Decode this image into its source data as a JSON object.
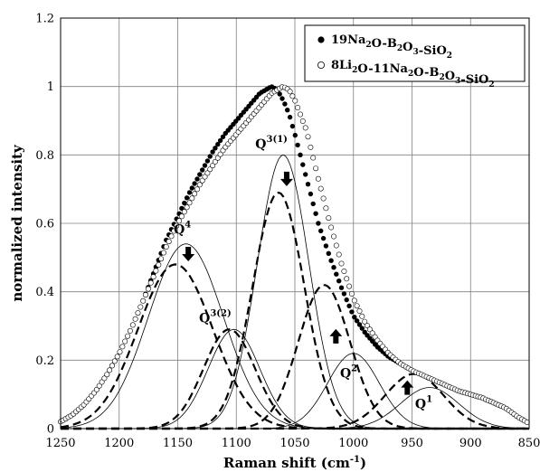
{
  "chart_data": {
    "type": "line",
    "xlabel": "Raman shift (cm",
    "xlabel_sup": "-1",
    "xlabel_end": ")",
    "ylabel": "normalized intensity",
    "xlim": [
      1250,
      850
    ],
    "ylim": [
      0,
      1.2
    ],
    "x_reversed": true,
    "x_ticks": [
      1250,
      1200,
      1150,
      1100,
      1050,
      1000,
      950,
      900,
      850
    ],
    "y_ticks": [
      0,
      0.2,
      0.4,
      0.6,
      0.8,
      1,
      1.2
    ],
    "y_tick_labels": [
      "0",
      "0.2",
      "0.4",
      "0.6",
      "0.8",
      "1",
      "1.2"
    ],
    "grid": true,
    "legend_position": "top-right",
    "series": [
      {
        "name": "19Na₂O-B₂O₃-SiO₂",
        "marker": "filled-circle",
        "x": [
          1250,
          1240,
          1230,
          1220,
          1210,
          1200,
          1190,
          1180,
          1170,
          1160,
          1150,
          1140,
          1130,
          1120,
          1110,
          1100,
          1090,
          1080,
          1070,
          1065,
          1060,
          1055,
          1050,
          1040,
          1030,
          1020,
          1010,
          1000,
          990,
          980,
          970,
          960,
          950,
          940,
          930,
          920,
          910,
          900,
          890,
          880,
          870,
          860,
          850
        ],
        "y": [
          0.02,
          0.04,
          0.07,
          0.11,
          0.16,
          0.22,
          0.29,
          0.37,
          0.46,
          0.55,
          0.62,
          0.69,
          0.75,
          0.81,
          0.86,
          0.9,
          0.94,
          0.98,
          1.0,
          0.99,
          0.96,
          0.92,
          0.86,
          0.73,
          0.6,
          0.5,
          0.41,
          0.33,
          0.28,
          0.24,
          0.21,
          0.19,
          0.17,
          0.155,
          0.14,
          0.125,
          0.11,
          0.1,
          0.09,
          0.075,
          0.06,
          0.035,
          0.015
        ]
      },
      {
        "name": "8Li₂O-11Na₂O-B₂O₃-SiO₂",
        "marker": "open-circle",
        "x": [
          1250,
          1240,
          1230,
          1220,
          1210,
          1200,
          1190,
          1180,
          1170,
          1160,
          1150,
          1140,
          1130,
          1120,
          1110,
          1100,
          1090,
          1080,
          1070,
          1065,
          1060,
          1055,
          1050,
          1040,
          1030,
          1020,
          1010,
          1000,
          990,
          980,
          970,
          960,
          950,
          940,
          930,
          920,
          910,
          900,
          890,
          880,
          870,
          860,
          850
        ],
        "y": [
          0.02,
          0.04,
          0.07,
          0.11,
          0.16,
          0.22,
          0.29,
          0.37,
          0.45,
          0.53,
          0.6,
          0.66,
          0.72,
          0.77,
          0.82,
          0.86,
          0.9,
          0.94,
          0.98,
          0.99,
          1.0,
          0.99,
          0.96,
          0.87,
          0.73,
          0.6,
          0.48,
          0.38,
          0.31,
          0.26,
          0.22,
          0.19,
          0.17,
          0.155,
          0.14,
          0.125,
          0.11,
          0.1,
          0.09,
          0.075,
          0.06,
          0.035,
          0.015
        ]
      }
    ],
    "peaks": [
      {
        "label": "Q",
        "sup": "4",
        "center": 1143,
        "solid_amp": 0.54,
        "dashed_center": 1152,
        "dashed_amp": 0.48,
        "sigma": 32,
        "arrow": "down"
      },
      {
        "label": "Q",
        "sup": "3(1)",
        "center": 1060,
        "solid_amp": 0.8,
        "dashed_center": 1064,
        "dashed_amp": 0.69,
        "sigma": 22,
        "arrow": "down"
      },
      {
        "label": "Q",
        "sup": "3(2)",
        "center": 1102,
        "solid_amp": 0.29,
        "dashed_center": 1106,
        "dashed_amp": 0.29,
        "sigma": 22,
        "arrow": "none"
      },
      {
        "label": "Q",
        "sup": "2",
        "center": 1000,
        "solid_amp": 0.22,
        "dashed_center": 1025,
        "dashed_amp": 0.42,
        "sigma": 22,
        "arrow": "up"
      },
      {
        "label": "Q",
        "sup": "1",
        "center": 935,
        "solid_amp": 0.12,
        "dashed_center": 948,
        "dashed_amp": 0.16,
        "sigma": 25,
        "arrow": "up"
      }
    ]
  }
}
